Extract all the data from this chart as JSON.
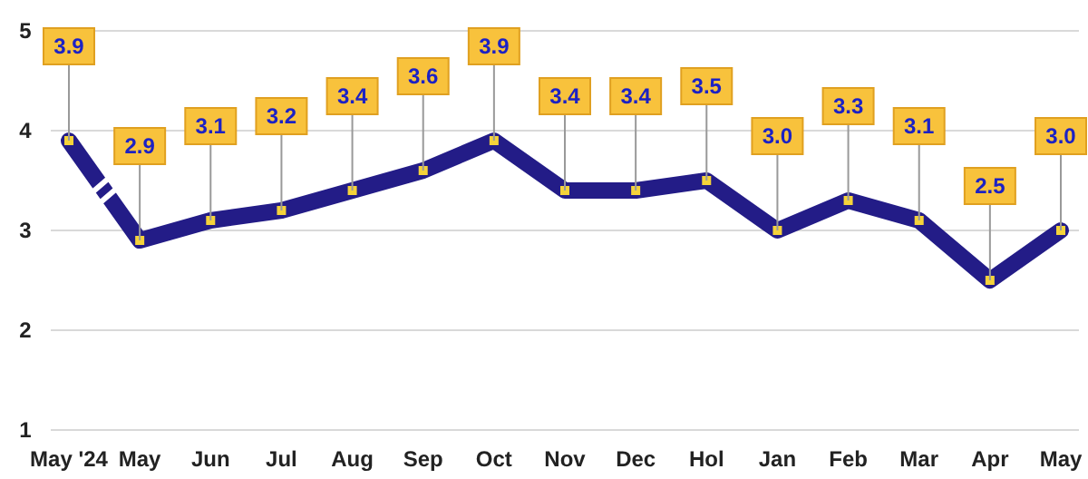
{
  "chart_data": {
    "type": "line",
    "categories": [
      "May '24",
      "May",
      "Jun",
      "Jul",
      "Aug",
      "Sep",
      "Oct",
      "Nov",
      "Dec",
      "Hol",
      "Jan",
      "Feb",
      "Mar",
      "Apr",
      "May"
    ],
    "series": [
      {
        "color": "#231c87",
        "values": [
          3.9,
          2.9,
          3.1,
          3.2,
          3.4,
          3.6,
          3.9,
          3.4,
          3.4,
          3.5,
          3.0,
          3.3,
          3.1,
          2.5,
          3.0
        ]
      }
    ],
    "value_labels": [
      "3.9",
      "2.9",
      "3.1",
      "3.2",
      "3.4",
      "3.6",
      "3.9",
      "3.4",
      "3.4",
      "3.5",
      "3.0",
      "3.3",
      "3.1",
      "2.5",
      "3.0"
    ],
    "ylim": [
      1,
      5
    ],
    "yticks": [
      1,
      2,
      3,
      4,
      5
    ],
    "grid": "y",
    "marker": "square",
    "line_style": "solid"
  }
}
